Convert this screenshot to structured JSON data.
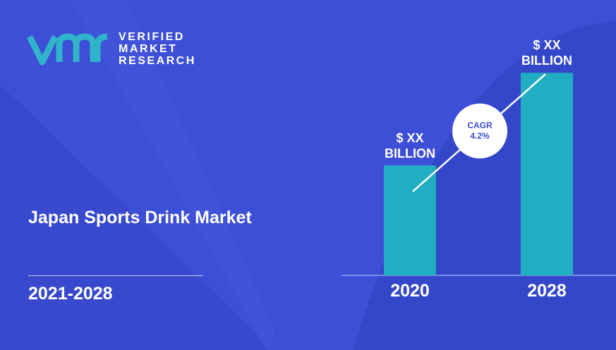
{
  "brand": {
    "logo_lines": [
      "VERIFIED",
      "MARKET",
      "RESEARCH"
    ],
    "colors": {
      "background": "#3d4fd6",
      "bar": "#21adc2",
      "logo_mark": "#2fb4c9",
      "text": "#ffffff"
    }
  },
  "market": {
    "title": "Japan Sports Drink Market",
    "period": "2021-2028"
  },
  "cagr": {
    "label": "CAGR",
    "value": "4.2%"
  },
  "chart_data": {
    "type": "bar",
    "categories": [
      "2020",
      "2028"
    ],
    "values": [
      51,
      94
    ],
    "value_labels": [
      {
        "line1": "$ XX",
        "line2": "BILLION"
      },
      {
        "line1": "$ XX",
        "line2": "BILLION"
      }
    ],
    "ylim": [
      0,
      100
    ],
    "grid": false,
    "legend": "none",
    "annotation": "CAGR 4.2%"
  }
}
